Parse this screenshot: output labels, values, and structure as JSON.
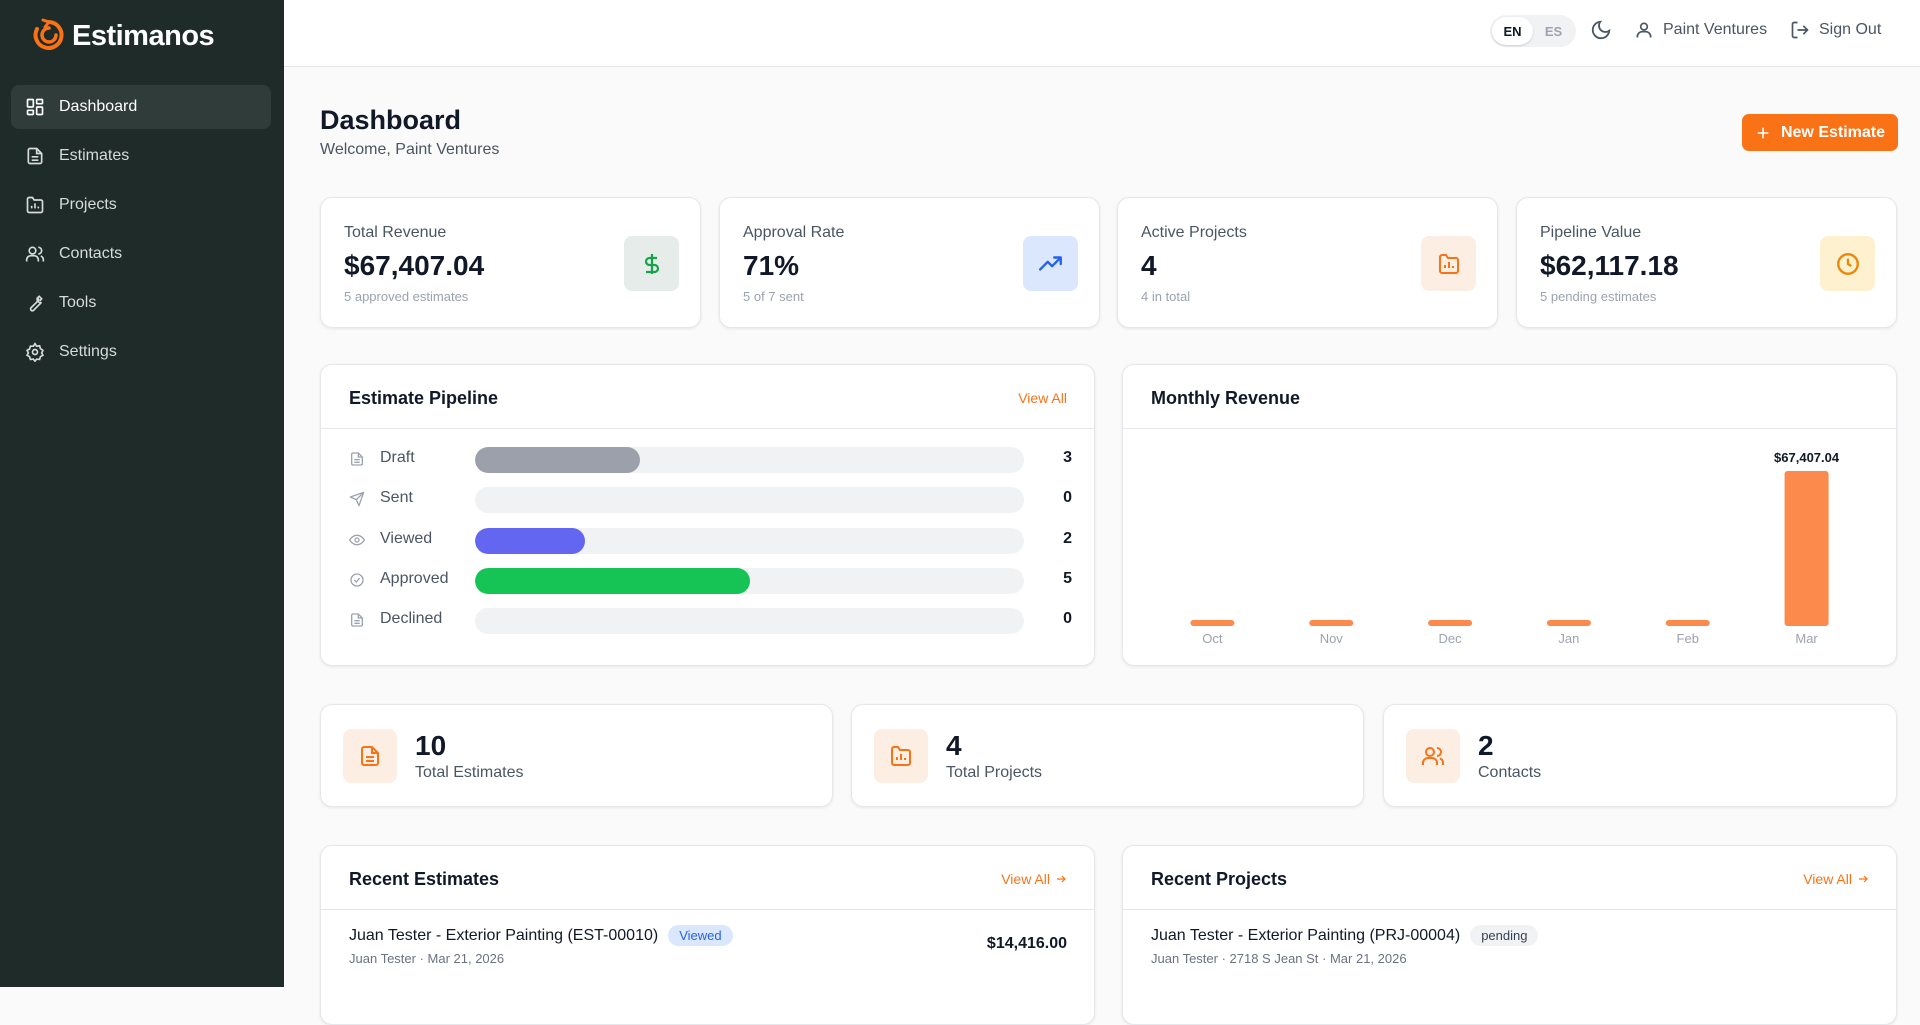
{
  "app": {
    "name": "Estimanos",
    "accent": "#f97316",
    "sidebar_bg": "#1e2b28"
  },
  "sidebar": {
    "items": [
      {
        "label": "Dashboard",
        "icon": "dashboard-grid-icon",
        "active": true
      },
      {
        "label": "Estimates",
        "icon": "document-icon"
      },
      {
        "label": "Projects",
        "icon": "folder-chart-icon"
      },
      {
        "label": "Contacts",
        "icon": "users-icon"
      },
      {
        "label": "Tools",
        "icon": "wrench-icon"
      },
      {
        "label": "Settings",
        "icon": "gear-icon"
      }
    ]
  },
  "topbar": {
    "languages": [
      "EN",
      "ES"
    ],
    "selected_language": "EN",
    "theme_icon": "moon-icon",
    "user_name": "Paint Ventures",
    "sign_out": "Sign Out"
  },
  "page": {
    "title": "Dashboard",
    "subtitle": "Welcome, Paint Ventures",
    "new_button": "New Estimate"
  },
  "stats": [
    {
      "label": "Total Revenue",
      "value": "$67,407.04",
      "sub": "5 approved estimates",
      "icon": "dollar-icon",
      "icon_bg": "#e5ece9",
      "icon_color": "#16a34a"
    },
    {
      "label": "Approval Rate",
      "value": "71%",
      "sub": "5 of 7 sent",
      "icon": "trending-up-icon",
      "icon_bg": "#dbe7fd",
      "icon_color": "#2563eb"
    },
    {
      "label": "Active Projects",
      "value": "4",
      "sub": "4 in total",
      "icon": "folder-chart-icon",
      "icon_bg": "#fdeee3",
      "icon_color": "#f97316"
    },
    {
      "label": "Pipeline Value",
      "value": "$62,117.18",
      "sub": "5 pending estimates",
      "icon": "clock-icon",
      "icon_bg": "#fdf1cf",
      "icon_color": "#ea8a0c"
    }
  ],
  "pipeline": {
    "title": "Estimate Pipeline",
    "view_all": "View All",
    "max": 10,
    "stages": [
      {
        "name": "Draft",
        "count": "3",
        "value": 3,
        "color": "#9ca0aa",
        "icon": "document-icon"
      },
      {
        "name": "Sent",
        "count": "0",
        "value": 0,
        "color": "#9ca0aa",
        "icon": "send-icon"
      },
      {
        "name": "Viewed",
        "count": "2",
        "value": 2,
        "color": "#6366f1",
        "icon": "eye-icon"
      },
      {
        "name": "Approved",
        "count": "5",
        "value": 5,
        "color": "#16c455",
        "icon": "check-circle-icon"
      },
      {
        "name": "Declined",
        "count": "0",
        "value": 0,
        "color": "#9ca0aa",
        "icon": "document-icon"
      }
    ]
  },
  "revenue": {
    "title": "Monthly Revenue",
    "bar_color": "#fb8a4c"
  },
  "chart_data": {
    "type": "bar",
    "title": "Monthly Revenue",
    "categories": [
      "Oct",
      "Nov",
      "Dec",
      "Jan",
      "Feb",
      "Mar"
    ],
    "values": [
      0,
      0,
      0,
      0,
      0,
      67407.04
    ],
    "data_labels": [
      "",
      "",
      "",
      "",
      "",
      "$67,407.04"
    ],
    "ylim": [
      0,
      67407.04
    ],
    "grid": false
  },
  "summary": [
    {
      "number": "10",
      "label": "Total Estimates",
      "icon": "document-icon"
    },
    {
      "number": "4",
      "label": "Total Projects",
      "icon": "folder-chart-icon"
    },
    {
      "number": "2",
      "label": "Contacts",
      "icon": "users-icon"
    }
  ],
  "recent_estimates": {
    "title": "Recent Estimates",
    "view_all": "View All",
    "items": [
      {
        "title": "Juan Tester - Exterior Painting (EST-00010)",
        "status": "Viewed",
        "meta": "Juan Tester · Mar 21, 2026",
        "amount": "$14,416.00"
      }
    ]
  },
  "recent_projects": {
    "title": "Recent Projects",
    "view_all": "View All",
    "items": [
      {
        "title": "Juan Tester - Exterior Painting (PRJ-00004)",
        "status": "pending",
        "meta": "Juan Tester · 2718 S Jean St · Mar 21, 2026"
      }
    ]
  }
}
